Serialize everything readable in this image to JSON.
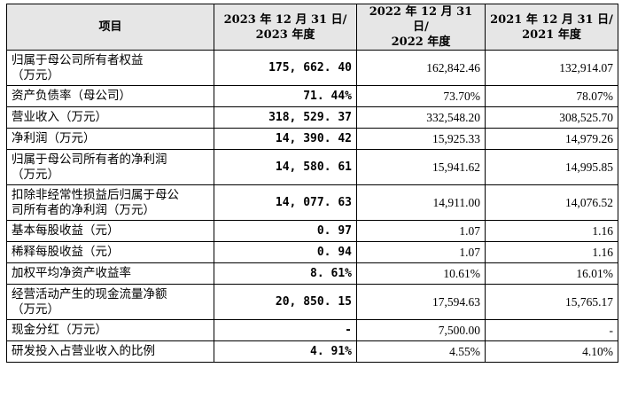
{
  "header": {
    "item": "项目",
    "col2023_l1": "2023 年 12 月 31 日/",
    "col2023_l2": "2023 年度",
    "col2022_l1": "2022 年 12 月 31 日/",
    "col2022_l2": "2022 年度",
    "col2021_l1": "2021 年 12 月 31 日/",
    "col2021_l2": "2021 年度"
  },
  "rows": [
    {
      "label_l1": "归属于母公司所有者权益",
      "label_l2": "（万元）",
      "v2023": "175, 662. 40",
      "v2022": "162,842.46",
      "v2021": "132,914.07"
    },
    {
      "label_l1": "资产负债率（母公司）",
      "label_l2": "",
      "v2023": "71. 44%",
      "v2022": "73.70%",
      "v2021": "78.07%"
    },
    {
      "label_l1": "营业收入（万元）",
      "label_l2": "",
      "v2023": "318, 529. 37",
      "v2022": "332,548.20",
      "v2021": "308,525.70"
    },
    {
      "label_l1": "净利润（万元）",
      "label_l2": "",
      "v2023": "14, 390. 42",
      "v2022": "15,925.33",
      "v2021": "14,979.26"
    },
    {
      "label_l1": "归属于母公司所有者的净利润",
      "label_l2": "（万元）",
      "v2023": "14, 580. 61",
      "v2022": "15,941.62",
      "v2021": "14,995.85"
    },
    {
      "label_l1": "扣除非经常性损益后归属于母公",
      "label_l2": "司所有者的净利润（万元）",
      "v2023": "14, 077. 63",
      "v2022": "14,911.00",
      "v2021": "14,076.52"
    },
    {
      "label_l1": "基本每股收益（元）",
      "label_l2": "",
      "v2023": "0. 97",
      "v2022": "1.07",
      "v2021": "1.16"
    },
    {
      "label_l1": "稀释每股收益（元）",
      "label_l2": "",
      "v2023": "0. 94",
      "v2022": "1.07",
      "v2021": "1.16"
    },
    {
      "label_l1": "加权平均净资产收益率",
      "label_l2": "",
      "v2023": "8. 61%",
      "v2022": "10.61%",
      "v2021": "16.01%"
    },
    {
      "label_l1": "经营活动产生的现金流量净额",
      "label_l2": "（万元）",
      "v2023": "20, 850. 15",
      "v2022": "17,594.63",
      "v2021": "15,765.17"
    },
    {
      "label_l1": "现金分红（万元）",
      "label_l2": "",
      "v2023": "-",
      "v2022": "7,500.00",
      "v2021": "-"
    },
    {
      "label_l1": "研发投入占营业收入的比例",
      "label_l2": "",
      "v2023": "4. 91%",
      "v2022": "4.55%",
      "v2021": "4.10%"
    }
  ]
}
